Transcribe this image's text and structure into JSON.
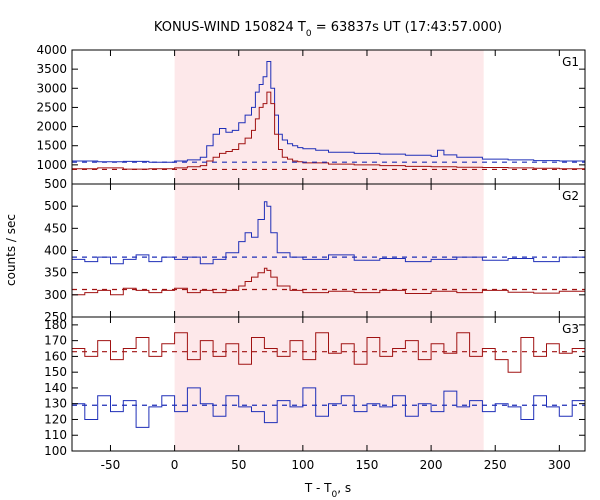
{
  "title": {
    "prefix": "KONUS-WIND 150824 T",
    "sub": "0",
    "suffix": " = 63837s UT (17:43:57.000)"
  },
  "xlabel": {
    "prefix": "T - T",
    "sub": "0",
    "suffix": ", s"
  },
  "ylabel": "counts / sec",
  "colors": {
    "shade": "#fde8ea",
    "blue": "#1f2fb8",
    "red": "#a01212",
    "cyan": "#5cc7ff",
    "pink": "#ff4fd0",
    "pink_bg_line": "#ff8fb0",
    "cyan_bg_line": "#66c8ee"
  },
  "chart_data": {
    "type": "line",
    "xlim": [
      -80,
      320
    ],
    "x_ticks": [
      -50,
      0,
      50,
      100,
      150,
      200,
      250,
      300
    ],
    "shaded_interval": [
      0,
      241
    ],
    "panels": [
      {
        "label": "G1",
        "ylim": [
          500,
          4000
        ],
        "y_ticks": [
          500,
          1000,
          1500,
          2000,
          2500,
          3000,
          3500,
          4000
        ],
        "series": [
          {
            "role": "blue-step",
            "x": [
              -80,
              -60,
              -40,
              -20,
              0,
              10,
              20,
              25,
              30,
              35,
              40,
              45,
              50,
              55,
              60,
              63,
              66,
              69,
              72,
              75,
              78,
              81,
              84,
              88,
              92,
              96,
              100,
              110,
              120,
              140,
              160,
              180,
              200,
              205,
              210,
              220,
              240,
              260,
              280,
              300,
              320
            ],
            "y": [
              1100,
              1080,
              1090,
              1070,
              1100,
              1130,
              1200,
              1500,
              1800,
              1950,
              1850,
              1900,
              2100,
              2300,
              2500,
              2900,
              3100,
              3300,
              3700,
              3000,
              2300,
              1800,
              1650,
              1550,
              1500,
              1450,
              1420,
              1380,
              1330,
              1300,
              1280,
              1250,
              1220,
              1380,
              1260,
              1200,
              1150,
              1130,
              1110,
              1100,
              1100
            ]
          },
          {
            "role": "red-step",
            "x": [
              -80,
              -60,
              -40,
              -20,
              0,
              10,
              20,
              25,
              30,
              35,
              40,
              45,
              50,
              55,
              60,
              63,
              66,
              69,
              72,
              75,
              78,
              81,
              84,
              88,
              92,
              96,
              100,
              120,
              140,
              160,
              180,
              200,
              220,
              240,
              260,
              280,
              300,
              320
            ],
            "y": [
              900,
              920,
              890,
              900,
              920,
              950,
              980,
              1100,
              1200,
              1300,
              1350,
              1400,
              1550,
              1700,
              1900,
              2200,
              2500,
              2600,
              2900,
              2600,
              1800,
              1400,
              1200,
              1150,
              1100,
              1080,
              1050,
              1020,
              1000,
              980,
              960,
              950,
              940,
              930,
              920,
              910,
              900,
              900
            ]
          },
          {
            "role": "blue-background",
            "y": 1070
          },
          {
            "role": "red-background",
            "y": 880
          }
        ]
      },
      {
        "label": "G2",
        "ylim": [
          250,
          550
        ],
        "y_ticks": [
          250,
          300,
          350,
          400,
          450,
          500
        ],
        "series": [
          {
            "role": "blue-step",
            "x": [
              -80,
              -70,
              -60,
              -50,
              -40,
              -30,
              -20,
              -10,
              0,
              10,
              20,
              30,
              40,
              50,
              55,
              60,
              65,
              70,
              72,
              75,
              80,
              90,
              100,
              120,
              140,
              160,
              180,
              200,
              220,
              240,
              260,
              280,
              300,
              320
            ],
            "y": [
              380,
              375,
              385,
              370,
              380,
              390,
              375,
              385,
              380,
              385,
              370,
              380,
              395,
              420,
              440,
              430,
              470,
              510,
              500,
              440,
              395,
              385,
              380,
              390,
              378,
              382,
              375,
              380,
              385,
              378,
              382,
              375,
              385,
              380
            ]
          },
          {
            "role": "red-step",
            "x": [
              -80,
              -70,
              -60,
              -50,
              -40,
              -30,
              -20,
              -10,
              0,
              10,
              20,
              30,
              40,
              50,
              55,
              60,
              65,
              70,
              72,
              75,
              80,
              90,
              100,
              120,
              140,
              160,
              180,
              200,
              220,
              240,
              260,
              280,
              300,
              320
            ],
            "y": [
              300,
              305,
              310,
              300,
              315,
              310,
              305,
              310,
              315,
              305,
              310,
              305,
              310,
              320,
              330,
              340,
              350,
              360,
              355,
              340,
              320,
              310,
              305,
              308,
              305,
              310,
              303,
              308,
              305,
              310,
              306,
              304,
              308,
              305
            ]
          },
          {
            "role": "blue-background",
            "y": 385
          },
          {
            "role": "red-background",
            "y": 312
          }
        ]
      },
      {
        "label": "G3",
        "ylim": [
          100,
          185
        ],
        "y_ticks": [
          100,
          110,
          120,
          130,
          140,
          150,
          160,
          170,
          180
        ],
        "series": [
          {
            "role": "red-step",
            "x": [
              -80,
              -70,
              -60,
              -50,
              -40,
              -30,
              -20,
              -10,
              0,
              10,
              20,
              30,
              40,
              50,
              60,
              70,
              80,
              90,
              100,
              110,
              120,
              130,
              140,
              150,
              160,
              170,
              180,
              190,
              200,
              210,
              220,
              230,
              240,
              250,
              260,
              270,
              280,
              290,
              300,
              310,
              320
            ],
            "y": [
              165,
              160,
              170,
              158,
              165,
              172,
              160,
              168,
              175,
              158,
              170,
              160,
              168,
              155,
              172,
              165,
              160,
              170,
              158,
              175,
              162,
              168,
              155,
              172,
              160,
              165,
              170,
              158,
              168,
              162,
              175,
              160,
              165,
              158,
              150,
              172,
              160,
              168,
              162,
              165,
              160
            ]
          },
          {
            "role": "blue-step",
            "x": [
              -80,
              -70,
              -60,
              -50,
              -40,
              -30,
              -20,
              -10,
              0,
              10,
              20,
              30,
              40,
              50,
              60,
              70,
              80,
              90,
              100,
              110,
              120,
              130,
              140,
              150,
              160,
              170,
              180,
              190,
              200,
              210,
              220,
              230,
              240,
              250,
              260,
              270,
              280,
              290,
              300,
              310,
              320
            ],
            "y": [
              130,
              120,
              135,
              125,
              132,
              115,
              128,
              135,
              125,
              140,
              130,
              122,
              135,
              128,
              125,
              118,
              132,
              128,
              140,
              122,
              130,
              135,
              125,
              130,
              128,
              135,
              122,
              130,
              125,
              138,
              128,
              132,
              125,
              130,
              128,
              120,
              135,
              128,
              122,
              132,
              130
            ]
          },
          {
            "role": "red-background",
            "y": 163
          },
          {
            "role": "blue-background",
            "y": 129
          }
        ]
      }
    ]
  }
}
